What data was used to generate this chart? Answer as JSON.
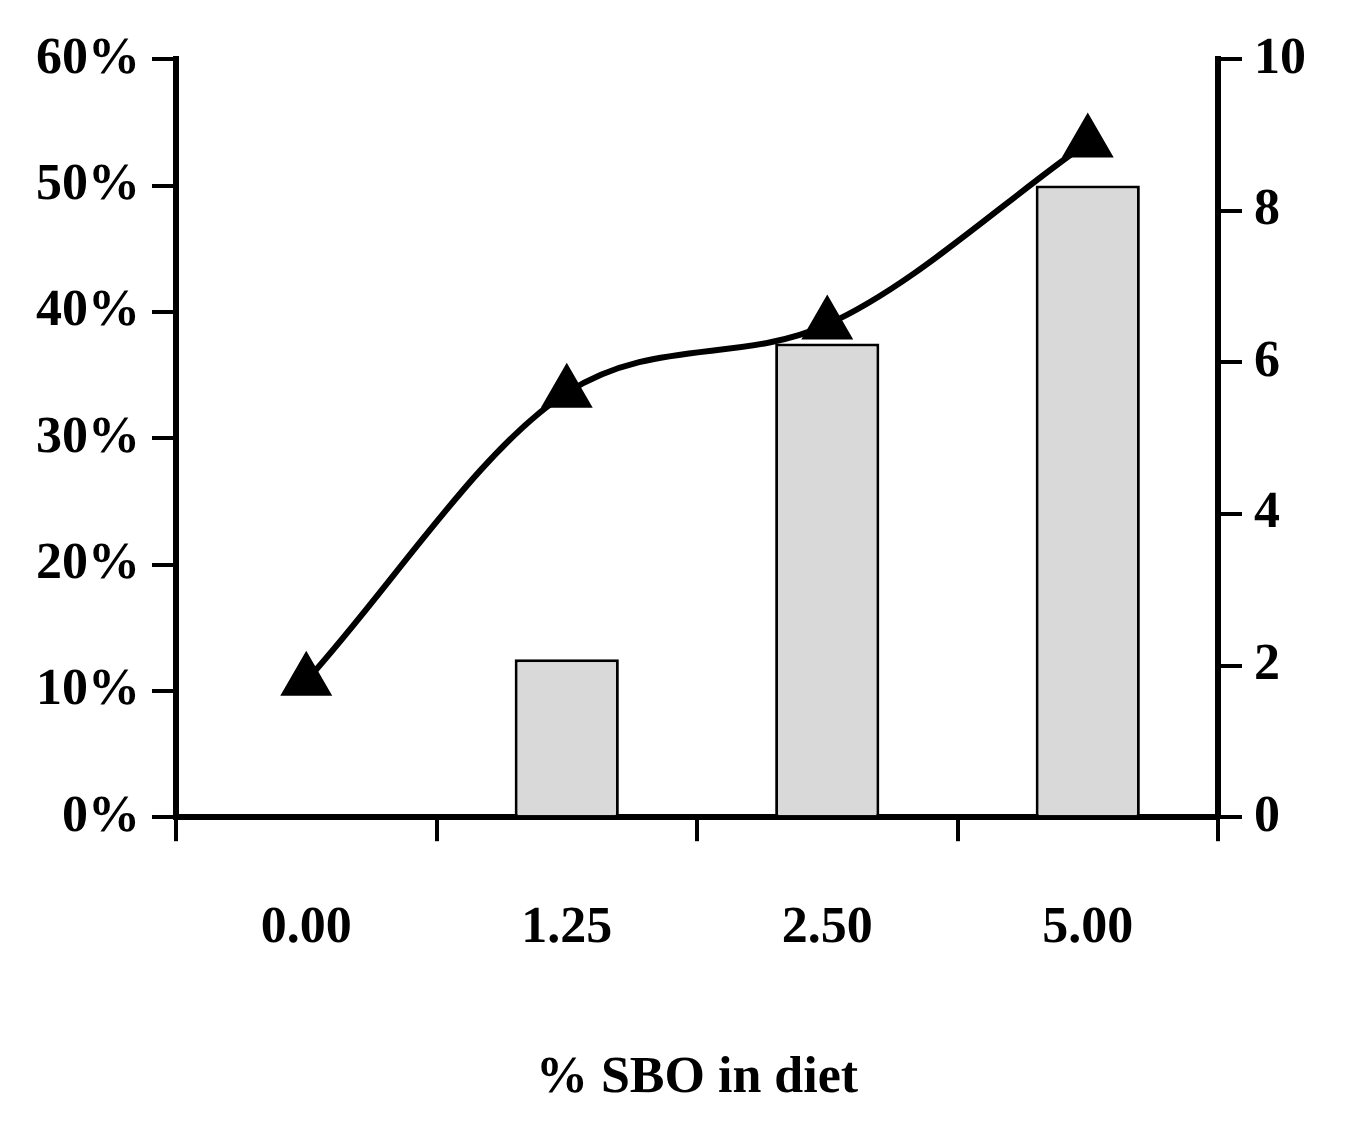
{
  "chart_data": {
    "type": "bar",
    "xlabel": "% SBO in diet",
    "categories": [
      "0.00",
      "1.25",
      "2.50",
      "5.00"
    ],
    "series": [
      {
        "color": "#d9d9d9",
        "values": [
          0,
          12.5,
          37.5,
          50
        ]
      },
      {
        "type": "line",
        "axis": "y2",
        "color": "#000000",
        "values": [
          1.8,
          5.6,
          6.5,
          8.9
        ]
      }
    ],
    "ylim": [
      0,
      60
    ],
    "yticks": [
      {
        "value": 0,
        "label": "0%"
      },
      {
        "value": 10,
        "label": "10%"
      },
      {
        "value": 20,
        "label": "20%"
      },
      {
        "value": 30,
        "label": "30%"
      },
      {
        "value": 40,
        "label": "40%"
      },
      {
        "value": 50,
        "label": "50%"
      },
      {
        "value": 60,
        "label": "60%"
      }
    ],
    "y2lim": [
      0,
      10
    ],
    "y2ticks": [
      0,
      2,
      4,
      6,
      8,
      10
    ],
    "grid": false,
    "legend": false,
    "marker": "triangle",
    "line_style": "solid"
  }
}
